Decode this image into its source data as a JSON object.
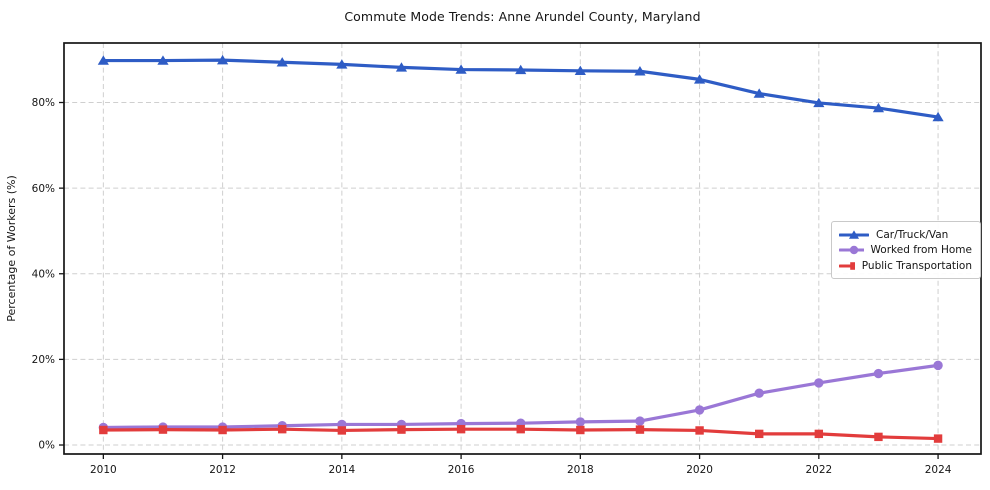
{
  "chart_data": {
    "type": "line",
    "title": "Commute Mode Trends: Anne Arundel County, Maryland",
    "xlabel": "",
    "ylabel": "Percentage of Workers (%)",
    "x": [
      2010,
      2011,
      2012,
      2013,
      2014,
      2015,
      2016,
      2017,
      2018,
      2019,
      2020,
      2021,
      2022,
      2023,
      2024
    ],
    "xticks": [
      2010,
      2012,
      2014,
      2016,
      2018,
      2020,
      2022,
      2024
    ],
    "xtick_labels": [
      "2010",
      "2012",
      "2014",
      "2016",
      "2018",
      "2020",
      "2022",
      "2024"
    ],
    "yticks": [
      0,
      20,
      40,
      60,
      80
    ],
    "ytick_labels": [
      "0%",
      "20%",
      "40%",
      "60%",
      "80%"
    ],
    "xlim": [
      2009.34,
      2024.72
    ],
    "ylim": [
      -2.1,
      93.9
    ],
    "grid": true,
    "grid_style": "dashed",
    "legend_position": "center right",
    "series": [
      {
        "name": "Car/Truck/Van",
        "color": "#2e5cc5",
        "marker": "triangle",
        "values": [
          89.8,
          89.8,
          89.9,
          89.4,
          88.9,
          88.2,
          87.7,
          87.6,
          87.4,
          87.3,
          85.4,
          82.1,
          79.9,
          78.7,
          76.6
        ]
      },
      {
        "name": "Worked from Home",
        "color": "#9a77d6",
        "marker": "circle",
        "values": [
          4.1,
          4.2,
          4.2,
          4.5,
          4.8,
          4.8,
          5.0,
          5.1,
          5.4,
          5.6,
          8.2,
          12.1,
          14.5,
          16.7,
          18.6
        ]
      },
      {
        "name": "Public Transportation",
        "color": "#e23c3c",
        "marker": "square",
        "values": [
          3.5,
          3.6,
          3.5,
          3.7,
          3.4,
          3.6,
          3.7,
          3.7,
          3.5,
          3.6,
          3.4,
          2.6,
          2.6,
          1.9,
          1.5
        ]
      }
    ]
  }
}
